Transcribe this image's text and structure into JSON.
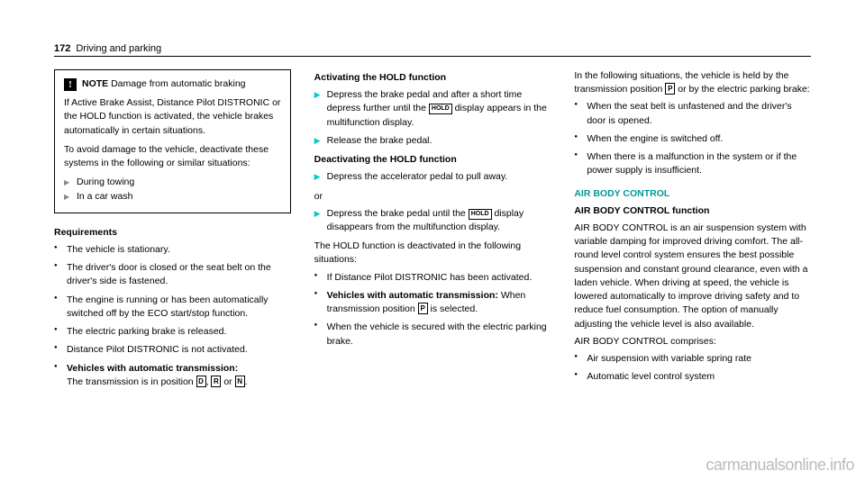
{
  "page": {
    "number": "172",
    "section": "Driving and parking"
  },
  "col1": {
    "note": {
      "label": "NOTE",
      "title": "Damage from automatic braking",
      "p1": "If Active Brake Assist, Distance Pilot DISTRONIC or the HOLD function is activated, the vehicle brakes automatically in certain situations.",
      "p2": "To avoid damage to the vehicle, deactivate these systems in the following or similar situations:",
      "li1": "During towing",
      "li2": "In a car wash"
    },
    "req": {
      "heading": "Requirements",
      "li1": "The vehicle is stationary.",
      "li2": "The driver's door is closed or the seat belt on the driver's side is fastened.",
      "li3": "The engine is running or has been automatically switched off by the ECO start/stop function.",
      "li4": "The electric parking brake is released.",
      "li5": "Distance Pilot DISTRONIC is not activated.",
      "li6a": "Vehicles with automatic transmission:",
      "li6b": "The transmission is in position ",
      "li6c": ", ",
      "li6d": " or ",
      "li6e": "."
    }
  },
  "col2": {
    "activate": {
      "heading": "Activating the HOLD function",
      "s1a": "Depress the brake pedal and after a short time depress further until the ",
      "s1b": " display appears in the multifunction display.",
      "s2": "Release the brake pedal."
    },
    "deactivate": {
      "heading": "Deactivating the HOLD function",
      "s1": "Depress the accelerator pedal to pull away.",
      "or": "or",
      "s2a": "Depress the brake pedal until the ",
      "s2b": " display disappears from the multifunction display."
    },
    "follow": {
      "intro": "The HOLD function is deactivated in the following situations:",
      "li1": "If Distance Pilot DISTRONIC has been activated.",
      "li2a": "Vehicles with automatic transmission:",
      "li2b": "When transmission position ",
      "li2c": " is selected.",
      "li3": "When the vehicle is secured with the electric parking brake."
    }
  },
  "col3": {
    "held": {
      "intro1": "In the following situations, the vehicle is held by the transmission position ",
      "intro2": " or by the electric parking brake:",
      "li1": "When the seat belt is unfastened and the driver's door is opened.",
      "li2": "When the engine is switched off.",
      "li3": "When there is a malfunction in the system or if the power supply is insufficient."
    },
    "abc": {
      "title": "AIR BODY CONTROL",
      "subtitle": "AIR BODY CONTROL function",
      "p1": "AIR BODY CONTROL is an air suspension system with variable damping for improved driving comfort. The all-round level control system ensures the best possible suspension and constant ground clearance, even with a laden vehicle. When driving at speed, the vehicle is lowered automatically to improve driving safety and to reduce fuel consumption. The option of manually adjusting the vehicle level is also available.",
      "p2": "AIR BODY CONTROL comprises:",
      "li1": "Air suspension with variable spring rate",
      "li2": "Automatic level control system"
    }
  },
  "glyphs": {
    "hold": "HOLD",
    "D": "D",
    "R": "R",
    "N": "N",
    "P": "P"
  },
  "watermark": "carmanualsonline.info"
}
